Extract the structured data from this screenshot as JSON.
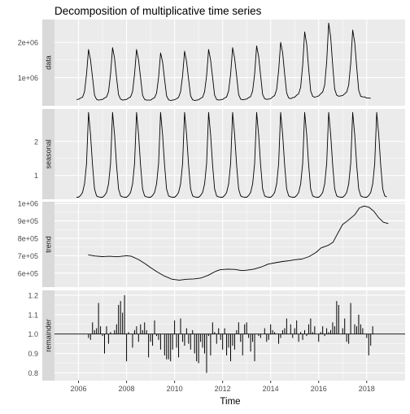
{
  "chart_data": {
    "type": "line",
    "title": "Decomposition of multiplicative time series",
    "xlabel": "Time",
    "x_range": [
      2005.0,
      2019.6
    ],
    "x_ticks": [
      2006,
      2008,
      2010,
      2012,
      2014,
      2016,
      2018
    ],
    "x_tick_labels": [
      "2006",
      "2008",
      "2010",
      "2012",
      "2014",
      "2016",
      "2018"
    ],
    "frequency": 12,
    "panels": [
      {
        "name": "data",
        "strip_label": "data",
        "style": "line",
        "ylim": [
          200000,
          2650000
        ],
        "y_ticks": [
          1000000,
          2000000
        ],
        "y_tick_labels": [
          "1e+06",
          "2e+06"
        ],
        "start": 2005.917,
        "values": [
          380000,
          380000,
          420000,
          440000,
          600000,
          1100000,
          1800000,
          1500000,
          1000000,
          500000,
          380000,
          360000,
          370000,
          380000,
          420000,
          450000,
          600000,
          1100000,
          1850000,
          1550000,
          1000000,
          510000,
          390000,
          360000,
          370000,
          380000,
          420000,
          450000,
          600000,
          1100000,
          1800000,
          1500000,
          1000000,
          500000,
          380000,
          360000,
          360000,
          360000,
          400000,
          430000,
          560000,
          1000000,
          1700000,
          1450000,
          950000,
          480000,
          370000,
          350000,
          360000,
          370000,
          400000,
          440000,
          600000,
          1050000,
          1750000,
          1450000,
          950000,
          480000,
          370000,
          350000,
          360000,
          370000,
          410000,
          440000,
          600000,
          1050000,
          1800000,
          1500000,
          1000000,
          500000,
          380000,
          360000,
          370000,
          380000,
          420000,
          450000,
          620000,
          1100000,
          1850000,
          1550000,
          1050000,
          520000,
          390000,
          370000,
          380000,
          390000,
          430000,
          460000,
          620000,
          1100000,
          1900000,
          1600000,
          1050000,
          520000,
          400000,
          380000,
          390000,
          400000,
          450000,
          490000,
          660000,
          1200000,
          2000000,
          1700000,
          1100000,
          560000,
          420000,
          400000,
          430000,
          440000,
          500000,
          540000,
          730000,
          1350000,
          2300000,
          1950000,
          1250000,
          620000,
          470000,
          440000,
          460000,
          480000,
          540000,
          590000,
          790000,
          1450000,
          2550000,
          2150000,
          1350000,
          670000,
          500000,
          470000,
          480000,
          490000,
          540000,
          590000,
          790000,
          1400000,
          2350000,
          2000000,
          1300000,
          640000,
          470000,
          450000,
          450000,
          420000,
          420000,
          410000
        ]
      },
      {
        "name": "seasonal",
        "strip_label": "seasonal",
        "style": "line",
        "ylim": [
          0.3,
          2.95
        ],
        "y_ticks": [
          1,
          2
        ],
        "y_tick_labels": [
          "1",
          "2"
        ],
        "start": 2005.917,
        "pattern": [
          0.36,
          0.36,
          0.41,
          0.5,
          0.75,
          1.35,
          2.85,
          2.2,
          1.3,
          0.6,
          0.4,
          0.37
        ],
        "cycles": 13
      },
      {
        "name": "trend",
        "strip_label": "trend",
        "style": "line",
        "ylim": [
          520000,
          1010000
        ],
        "y_ticks": [
          600000,
          700000,
          800000,
          900000,
          1000000
        ],
        "y_tick_labels": [
          "6e+05",
          "7e+05",
          "8e+05",
          "9e+05",
          "1e+06"
        ],
        "points": [
          [
            2006.4,
            705000
          ],
          [
            2006.7,
            698000
          ],
          [
            2007.0,
            695000
          ],
          [
            2007.3,
            697000
          ],
          [
            2007.6,
            694000
          ],
          [
            2008.0,
            700000
          ],
          [
            2008.2,
            697000
          ],
          [
            2008.5,
            678000
          ],
          [
            2008.8,
            652000
          ],
          [
            2009.0,
            632000
          ],
          [
            2009.3,
            605000
          ],
          [
            2009.6,
            582000
          ],
          [
            2009.9,
            565000
          ],
          [
            2010.2,
            560000
          ],
          [
            2010.5,
            565000
          ],
          [
            2010.8,
            567000
          ],
          [
            2011.1,
            572000
          ],
          [
            2011.4,
            588000
          ],
          [
            2011.7,
            610000
          ],
          [
            2011.9,
            620000
          ],
          [
            2012.2,
            623000
          ],
          [
            2012.5,
            622000
          ],
          [
            2012.8,
            615000
          ],
          [
            2013.0,
            617000
          ],
          [
            2013.3,
            623000
          ],
          [
            2013.6,
            635000
          ],
          [
            2013.9,
            652000
          ],
          [
            2014.2,
            660000
          ],
          [
            2014.5,
            667000
          ],
          [
            2014.8,
            672000
          ],
          [
            2015.0,
            677000
          ],
          [
            2015.3,
            681000
          ],
          [
            2015.6,
            695000
          ],
          [
            2015.9,
            720000
          ],
          [
            2016.1,
            745000
          ],
          [
            2016.4,
            760000
          ],
          [
            2016.6,
            778000
          ],
          [
            2016.8,
            830000
          ],
          [
            2017.0,
            880000
          ],
          [
            2017.2,
            900000
          ],
          [
            2017.5,
            935000
          ],
          [
            2017.7,
            975000
          ],
          [
            2017.9,
            985000
          ],
          [
            2018.1,
            978000
          ],
          [
            2018.3,
            955000
          ],
          [
            2018.5,
            918000
          ],
          [
            2018.7,
            892000
          ],
          [
            2018.9,
            885000
          ]
        ]
      },
      {
        "name": "remainder",
        "strip_label": "remainder",
        "style": "bars",
        "baseline": 1.0,
        "ylim": [
          0.76,
          1.225
        ],
        "y_ticks": [
          0.8,
          0.9,
          1.0,
          1.1,
          1.2
        ],
        "y_tick_labels": [
          "0.8",
          "0.9",
          "1.0",
          "1.1",
          "1.2"
        ],
        "start": 2006.417,
        "values": [
          0.98,
          0.97,
          1.06,
          1.02,
          1.03,
          1.16,
          1.04,
          0.99,
          0.9,
          1.04,
          0.95,
          1.01,
          1.0,
          1.02,
          1.05,
          1.15,
          1.17,
          1.11,
          1.2,
          0.86,
          1.01,
          1.0,
          0.93,
          1.02,
          1.04,
          0.96,
          1.05,
          1.02,
          1.06,
          1.02,
          0.88,
          0.96,
          0.94,
          1.07,
          0.99,
          0.97,
          0.92,
          1.0,
          0.89,
          0.87,
          0.87,
          0.86,
          0.92,
          1.07,
          0.93,
          0.88,
          1.08,
          0.96,
          0.94,
          1.03,
          0.95,
          0.92,
          1.02,
          0.9,
          0.86,
          0.85,
          0.96,
          0.93,
          0.9,
          0.8,
          0.99,
          0.89,
          1.06,
          1.01,
          0.95,
          1.03,
          0.97,
          0.92,
          1.03,
          0.89,
          0.93,
          0.86,
          0.94,
          0.92,
          1.02,
          1.06,
          0.96,
          0.89,
          1.05,
          1.06,
          0.98,
          0.91,
          0.96,
          0.86,
          1.0,
          0.99,
          0.98,
          1.0,
          1.03,
          0.96,
          0.97,
          1.05,
          1.02,
          1.01,
          1.0,
          0.95,
          0.98,
          1.02,
          1.03,
          1.08,
          1.0,
          1.05,
          0.98,
          1.03,
          1.07,
          0.96,
          1.01,
          0.97,
          1.02,
          0.99,
          1.05,
          1.08,
          1.01,
          1.04,
          1.0,
          0.96,
          1.01,
          1.04,
          0.99,
          1.03,
          1.01,
          1.02,
          1.06,
          1.04,
          1.17,
          1.15,
          1.0,
          1.03,
          1.08,
          0.96,
          0.95,
          1.16,
          1.0,
          1.05,
          1.04,
          1.1,
          1.05,
          1.03,
          1.0,
          0.98,
          0.89,
          0.94,
          1.04
        ]
      }
    ],
    "grid": true,
    "colors": {
      "panel_bg": "#ebebeb",
      "grid_major": "#ffffff",
      "strip_bg": "#d9d9d9",
      "series": "#000000",
      "tick_text": "#4d4d4d"
    }
  }
}
